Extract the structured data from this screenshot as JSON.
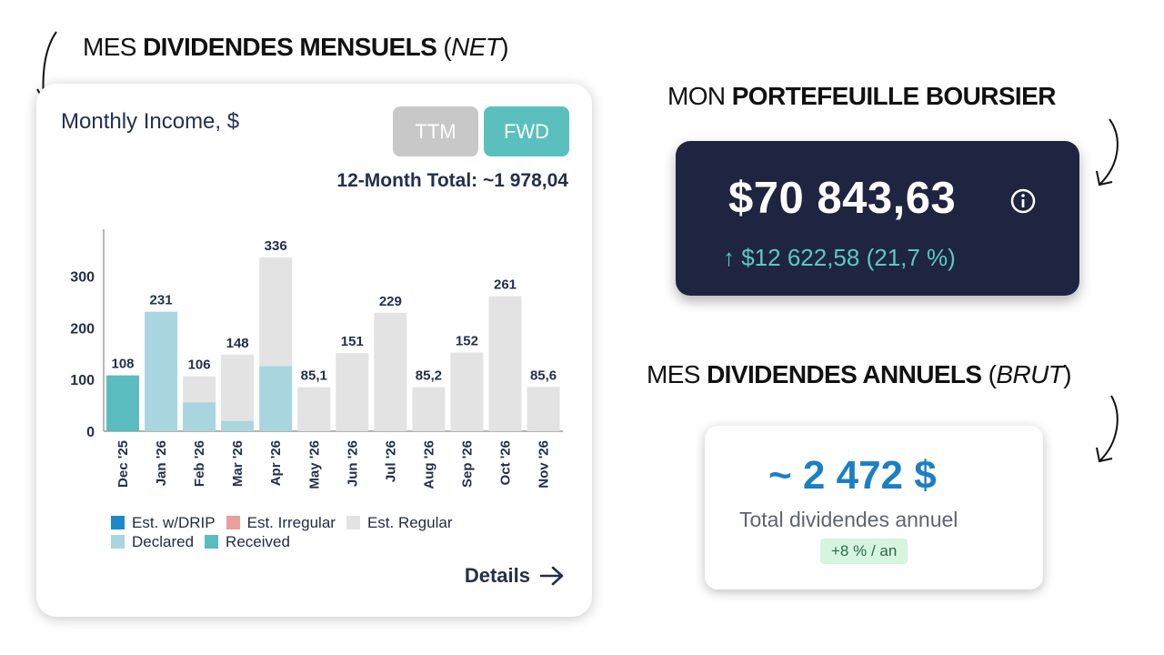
{
  "headings": {
    "monthly": {
      "prefix": "MES ",
      "bold": "DIVIDENDES MENSUELS",
      "open": " (",
      "italic": "NET",
      "close": ")"
    },
    "portfolio": {
      "prefix": "MON ",
      "bold": "PORTEFEUILLE BOURSIER"
    },
    "annual": {
      "prefix": "MES ",
      "bold": "DIVIDENDES ANNUELS",
      "open": " (",
      "italic": "BRUT",
      "close": ")"
    }
  },
  "monthly_card": {
    "title": "Monthly Income, $",
    "ttm_label": "TTM",
    "fwd_label": "FWD",
    "total_text": "12-Month Total: ~1 978,04",
    "details_label": "Details",
    "legend": [
      {
        "label": "Est. w/DRIP",
        "color": "#1e88c8"
      },
      {
        "label": "Est. Irregular",
        "color": "#e8a09c"
      },
      {
        "label": "Est. Regular",
        "color": "#e3e3e3"
      },
      {
        "label": "Declared",
        "color": "#a9d5de"
      },
      {
        "label": "Received",
        "color": "#5bbcbf"
      }
    ]
  },
  "chart_data": {
    "type": "bar",
    "stacked": true,
    "categories": [
      "Dec '25",
      "Jan '26",
      "Feb '26",
      "Mar '26",
      "Apr '26",
      "May '26",
      "Jun '26",
      "Jul '26",
      "Aug '26",
      "Sep '26",
      "Oct '26",
      "Nov '26"
    ],
    "series": [
      {
        "name": "Received",
        "color": "#5bbcbf",
        "values": [
          108,
          0,
          0,
          0,
          0,
          0,
          0,
          0,
          0,
          0,
          0,
          0
        ]
      },
      {
        "name": "Declared",
        "color": "#a9d5de",
        "values": [
          0,
          231,
          56,
          20,
          126,
          0,
          0,
          0,
          0,
          0,
          0,
          0
        ]
      },
      {
        "name": "Est. Regular",
        "color": "#e3e3e3",
        "values": [
          0,
          0,
          50,
          128,
          210,
          85.1,
          151,
          229,
          85.2,
          152,
          261,
          85.6
        ]
      }
    ],
    "totals_labels": [
      "108",
      "231",
      "106",
      "148",
      "336",
      "85,1",
      "151",
      "229",
      "85,2",
      "152",
      "261",
      "85,6"
    ],
    "yticks": [
      "0",
      "100",
      "200",
      "300"
    ],
    "ylim": [
      0,
      380
    ],
    "grid": false
  },
  "portfolio_card": {
    "value": "$70 843,63",
    "change": "↑ $12 622,58 (21,7 %)",
    "info_icon": "info-circle-icon"
  },
  "annual_card": {
    "value": "~ 2 472 $",
    "label": "Total dividendes annuel",
    "badge": "+8 % / an"
  }
}
